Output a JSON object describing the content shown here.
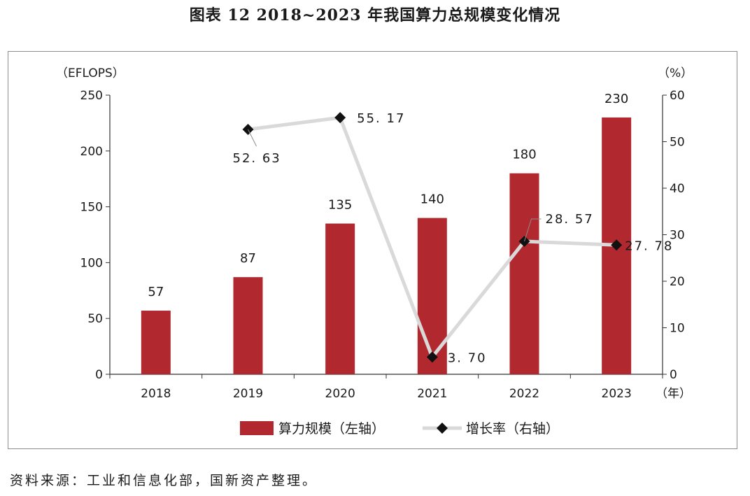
{
  "title": "图表 12  2018~2023 年我国算力总规模变化情况",
  "source": "资料来源：工业和信息化部，国新资产整理。",
  "chart_data": {
    "type": "bar",
    "categories": [
      "2018",
      "2019",
      "2020",
      "2021",
      "2022",
      "2023"
    ],
    "series": [
      {
        "name": "算力规模（左轴）",
        "type": "bar",
        "axis": "left",
        "color": "#b2282f",
        "values": [
          57,
          87,
          135,
          140,
          180,
          230
        ],
        "labels": [
          "57",
          "87",
          "135",
          "140",
          "180",
          "230"
        ]
      },
      {
        "name": "增长率（右轴）",
        "type": "line",
        "axis": "right",
        "color": "#d9d9d9",
        "marker": "diamond",
        "marker_color": "#111111",
        "values": [
          null,
          52.63,
          55.17,
          3.7,
          28.57,
          27.78
        ],
        "labels": [
          "",
          "52. 63",
          "55. 17",
          "3. 70",
          "28. 57",
          "27. 78"
        ]
      }
    ],
    "y_left": {
      "unit": "（EFLOPS）",
      "range": [
        0,
        250
      ],
      "ticks": [
        "0",
        "50",
        "100",
        "150",
        "200",
        "250"
      ]
    },
    "y_right": {
      "unit": "（%）",
      "range": [
        0,
        60
      ],
      "ticks": [
        "0",
        "10",
        "20",
        "30",
        "40",
        "50",
        "60"
      ]
    },
    "x_unit": "（年）",
    "grid": false,
    "legend_position": "bottom"
  }
}
